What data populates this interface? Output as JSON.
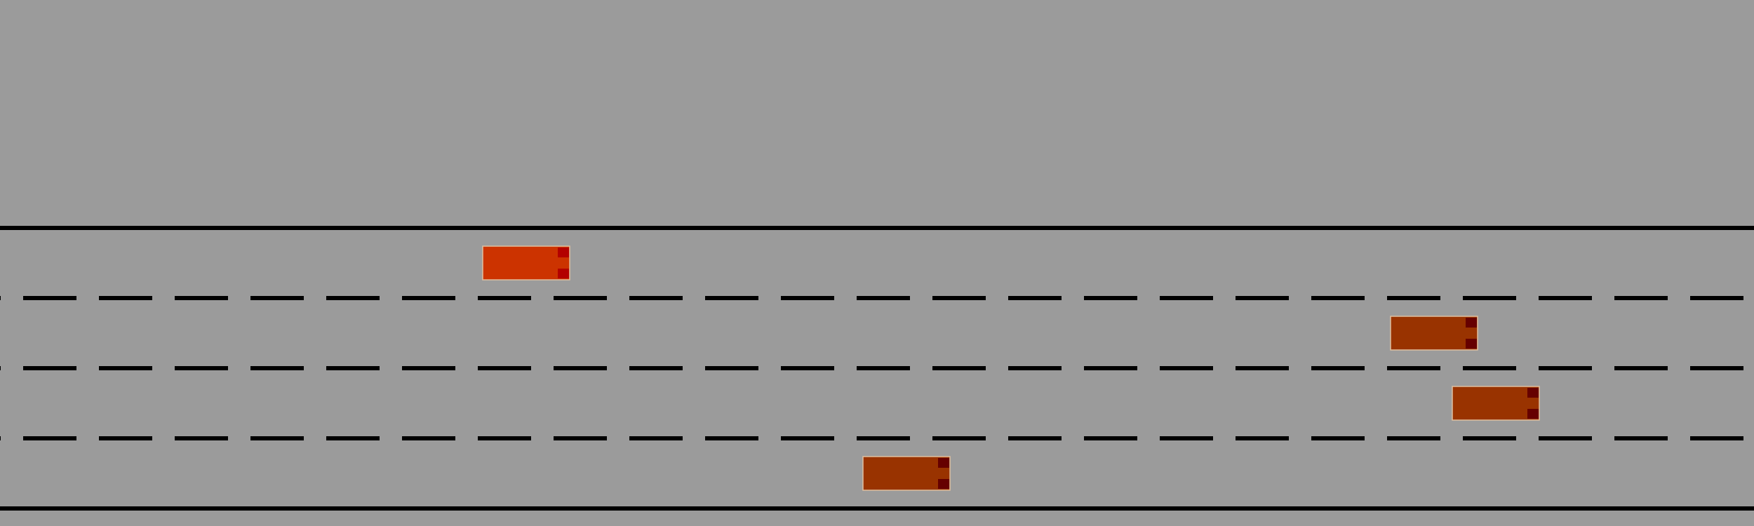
{
  "colors": {
    "background": "#9b9b9b",
    "lane_line": "#000000",
    "ego_vehicle": "#cc3300",
    "ego_vehicle_lights": "#b30000",
    "other_vehicle": "#993300",
    "other_vehicle_lights": "#660000",
    "vehicle_outline": "#e0c0a0"
  },
  "road": {
    "lane_count": 4,
    "boundaries": [
      "solid",
      "dashed",
      "dashed",
      "dashed",
      "solid"
    ]
  },
  "vehicles": [
    {
      "role": "ego",
      "lane": 0,
      "heading": "right"
    },
    {
      "role": "other",
      "lane": 1,
      "heading": "right"
    },
    {
      "role": "other",
      "lane": 2,
      "heading": "right"
    },
    {
      "role": "other",
      "lane": 3,
      "heading": "right"
    }
  ]
}
